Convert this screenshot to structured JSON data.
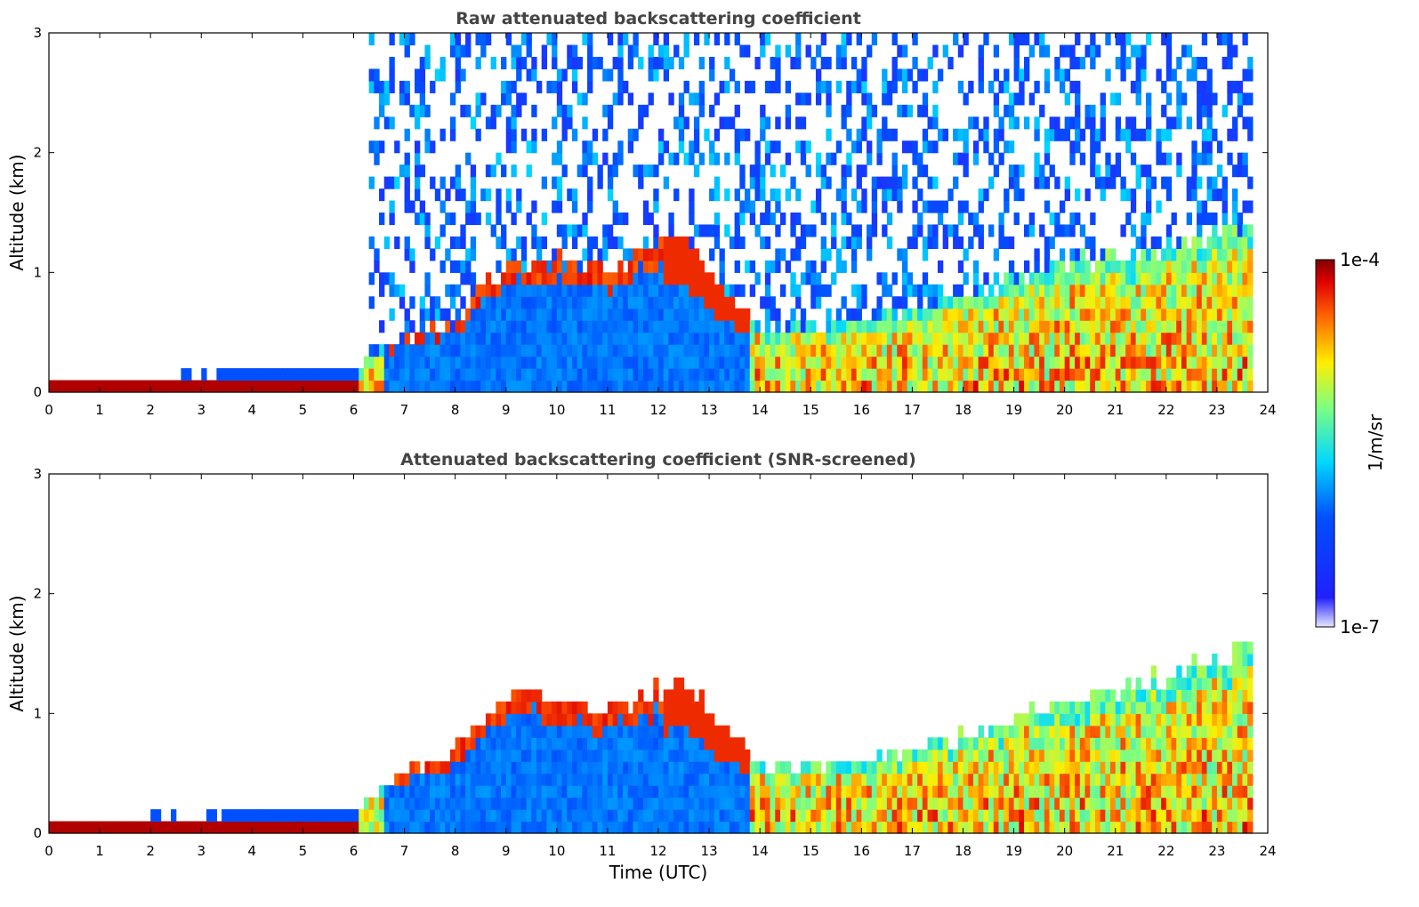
{
  "figure": {
    "colorbar": {
      "top_label": "1e-4",
      "bottom_label": "1e-7",
      "unit_label": "1/m/sr",
      "colors": [
        "#e6e6ff",
        "#0000ff",
        "#00c8ff",
        "#ffee00",
        "#ff7700",
        "#e60000",
        "#800000"
      ]
    }
  },
  "chart_data": [
    {
      "type": "heatmap",
      "title": "Raw attenuated backscattering coefficient",
      "xlabel": "",
      "ylabel": "Altitude (km)",
      "xlim": [
        0,
        24
      ],
      "ylim": [
        0,
        3
      ],
      "xticks": [
        "0",
        "1",
        "2",
        "3",
        "4",
        "5",
        "6",
        "7",
        "8",
        "9",
        "10",
        "11",
        "12",
        "13",
        "14",
        "15",
        "16",
        "17",
        "18",
        "19",
        "20",
        "21",
        "22",
        "23",
        "24"
      ],
      "yticks": [
        "0",
        "1",
        "2",
        "3"
      ],
      "colorscale": "jet (log 1e-7 to 1e-4 1/m/sr)",
      "approx_boundary_layer_top_km": [
        {
          "t": 0,
          "h": 0.12
        },
        {
          "t": 3,
          "h": 0.15
        },
        {
          "t": 6,
          "h": 0.2
        },
        {
          "t": 7,
          "h": 0.45
        },
        {
          "t": 8,
          "h": 0.6
        },
        {
          "t": 9,
          "h": 1.1
        },
        {
          "t": 11,
          "h": 1.05
        },
        {
          "t": 12.5,
          "h": 1.3
        },
        {
          "t": 14,
          "h": 0.5
        },
        {
          "t": 16,
          "h": 0.6
        },
        {
          "t": 18,
          "h": 0.8
        },
        {
          "t": 20,
          "h": 1.1
        },
        {
          "t": 22,
          "h": 1.2
        },
        {
          "t": 23.7,
          "h": 1.4
        }
      ]
    },
    {
      "type": "heatmap",
      "title": "Attenuated backscattering coefficient (SNR-screened)",
      "xlabel": "Time (UTC)",
      "ylabel": "Altitude (km)",
      "xlim": [
        0,
        24
      ],
      "ylim": [
        0,
        3
      ],
      "xticks": [
        "0",
        "1",
        "2",
        "3",
        "4",
        "5",
        "6",
        "7",
        "8",
        "9",
        "10",
        "11",
        "12",
        "13",
        "14",
        "15",
        "16",
        "17",
        "18",
        "19",
        "20",
        "21",
        "22",
        "23",
        "24"
      ],
      "yticks": [
        "0",
        "1",
        "2",
        "3"
      ],
      "colorscale": "jet (log 1e-7 to 1e-4 1/m/sr)",
      "approx_boundary_layer_top_km": [
        {
          "t": 0,
          "h": 0.12
        },
        {
          "t": 3,
          "h": 0.15
        },
        {
          "t": 6,
          "h": 0.2
        },
        {
          "t": 7,
          "h": 0.5
        },
        {
          "t": 8,
          "h": 0.7
        },
        {
          "t": 9,
          "h": 1.2
        },
        {
          "t": 11,
          "h": 1.05
        },
        {
          "t": 12.5,
          "h": 1.3
        },
        {
          "t": 14,
          "h": 0.55
        },
        {
          "t": 16,
          "h": 0.6
        },
        {
          "t": 18,
          "h": 0.8
        },
        {
          "t": 20,
          "h": 1.1
        },
        {
          "t": 22,
          "h": 1.3
        },
        {
          "t": 23.7,
          "h": 1.6
        }
      ]
    }
  ]
}
